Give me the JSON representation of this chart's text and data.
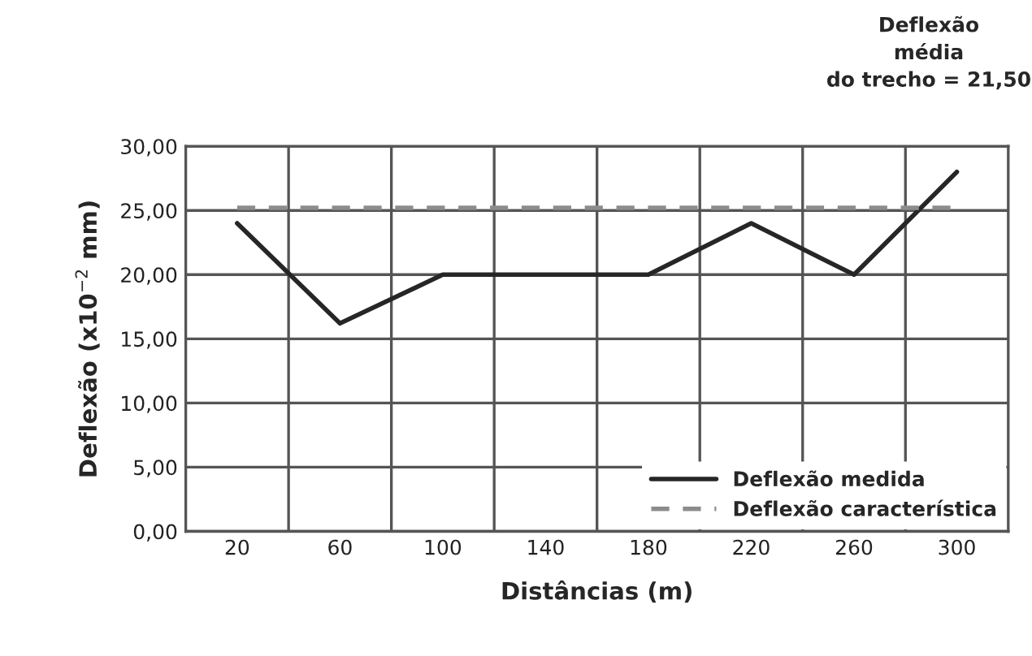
{
  "chart_data": {
    "type": "line",
    "xlabel": "Distâncias (m)",
    "ylabel": "Deflexão (x10$^{−2}$ mm)",
    "categories": [
      "20",
      "60",
      "100",
      "140",
      "180",
      "220",
      "260",
      "300"
    ],
    "series": [
      {
        "name": "Deflexão medida",
        "color": "#262626",
        "values": [
          24,
          16.2,
          20,
          20,
          20,
          24,
          20,
          28
        ],
        "line_style": "solid"
      },
      {
        "name": "Deflexão característica",
        "color": "#8c8c8c",
        "values": [
          25.2,
          25.2,
          25.2,
          25.2,
          25.2,
          25.2,
          25.2,
          25.2
        ],
        "line_style": "dashed"
      }
    ],
    "ylim": [
      0,
      30
    ],
    "yticks": [
      {
        "value": 0,
        "label": "0,00"
      },
      {
        "value": 5,
        "label": "5,00"
      },
      {
        "value": 10,
        "label": "10,00"
      },
      {
        "value": 15,
        "label": "15,00"
      },
      {
        "value": 20,
        "label": "20,00"
      },
      {
        "value": 25,
        "label": "25,00"
      },
      {
        "value": 30,
        "label": "30,00"
      }
    ],
    "grid": true,
    "legend": "bottom right",
    "marker": "none",
    "annotations": [
      "Deflexão\nmédia\ndo trecho = 21,50"
    ]
  }
}
